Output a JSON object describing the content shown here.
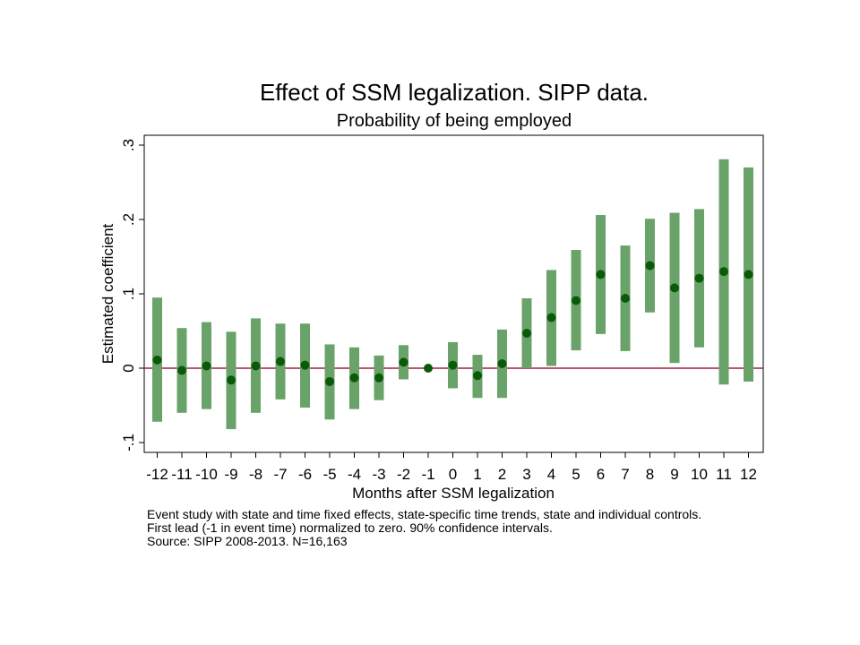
{
  "title": "Effect of SSM legalization. SIPP data.",
  "subtitle": "Probability of being employed",
  "notes": [
    "Event study with state and time fixed effects, state-specific time trends, state and individual controls.",
    "First lead (-1 in event time) normalized to zero. 90% confidence intervals.",
    "Source: SIPP 2008-2013. N=16,163"
  ],
  "colors": {
    "ci_bar": "#6aa36a",
    "point": "#0a5a0a",
    "zero_line": "#a0203a"
  },
  "chart_data": {
    "type": "scatter",
    "title": "Effect of SSM legalization. SIPP data.",
    "subtitle": "Probability of being employed",
    "xlabel": "Months after SSM legalization",
    "ylabel": "Estimated coefficient",
    "ylim": [
      -0.115,
      0.3
    ],
    "yticks": [
      -0.1,
      0,
      0.1,
      0.2,
      0.3
    ],
    "ytick_labels": [
      "-.1",
      "0",
      ".1",
      ".2",
      ".3"
    ],
    "xticks": [
      -12,
      -11,
      -10,
      -9,
      -8,
      -7,
      -6,
      -5,
      -4,
      -3,
      -2,
      -1,
      0,
      1,
      2,
      3,
      4,
      5,
      6,
      7,
      8,
      9,
      10,
      11,
      12
    ],
    "xtick_labels": [
      "-12",
      "-11",
      "-10",
      "-9",
      "-8",
      "-7",
      "-6",
      "-5",
      "-4",
      "-3",
      "-2",
      "-1",
      "0",
      "1",
      "2",
      "3",
      "4",
      "5",
      "6",
      "7",
      "8",
      "9",
      "10",
      "11",
      "12"
    ],
    "reference_line": 0,
    "grid": false,
    "series": [
      {
        "x": [
          -12,
          -11,
          -10,
          -9,
          -8,
          -7,
          -6,
          -5,
          -4,
          -3,
          -2,
          -1,
          0,
          1,
          2,
          3,
          4,
          5,
          6,
          7,
          8,
          9,
          10,
          11,
          12
        ],
        "y": [
          0.011,
          -0.003,
          0.003,
          -0.016,
          0.003,
          0.009,
          0.004,
          -0.018,
          -0.013,
          -0.013,
          0.008,
          0.0,
          0.004,
          -0.01,
          0.006,
          0.047,
          0.068,
          0.091,
          0.126,
          0.094,
          0.138,
          0.108,
          0.121,
          0.13,
          0.126
        ],
        "lower": [
          -0.072,
          -0.06,
          -0.055,
          -0.082,
          -0.06,
          -0.042,
          -0.053,
          -0.069,
          -0.055,
          -0.043,
          -0.015,
          0.0,
          -0.027,
          -0.04,
          -0.04,
          0.0,
          0.003,
          0.024,
          0.046,
          0.023,
          0.075,
          0.007,
          0.028,
          -0.022,
          -0.018
        ],
        "upper": [
          0.095,
          0.054,
          0.062,
          0.049,
          0.067,
          0.06,
          0.06,
          0.032,
          0.028,
          0.017,
          0.031,
          0.0,
          0.035,
          0.018,
          0.052,
          0.094,
          0.132,
          0.159,
          0.206,
          0.165,
          0.201,
          0.209,
          0.214,
          0.281,
          0.27
        ]
      }
    ]
  }
}
